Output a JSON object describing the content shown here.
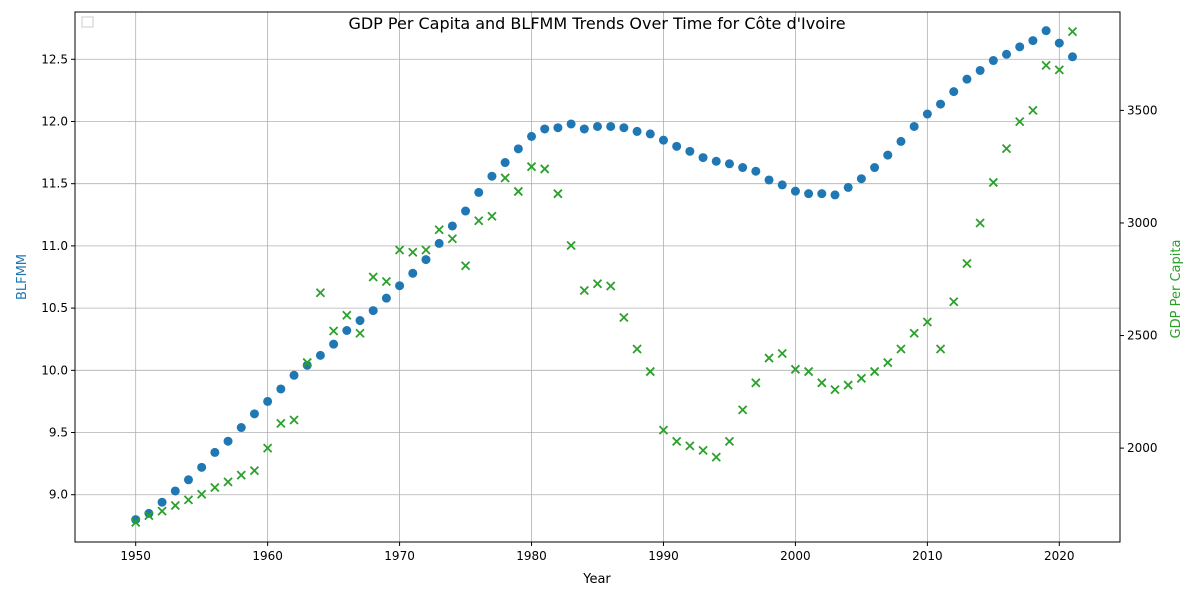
{
  "chart_data": {
    "type": "scatter",
    "title": "GDP Per Capita and BLFMM Trends Over Time for Côte d'Ivoire",
    "xlabel": "Year",
    "ylabel_left": "BLFMM",
    "ylabel_right": "GDP Per Capita",
    "xlim": [
      1945.4,
      2024.6
    ],
    "ylim_left": [
      8.62,
      12.88
    ],
    "ylim_right": [
      1583,
      3937
    ],
    "x_ticks": [
      1950,
      1960,
      1970,
      1980,
      1990,
      2000,
      2010,
      2020
    ],
    "y_left_ticks": [
      9.0,
      9.5,
      10.0,
      10.5,
      11.0,
      11.5,
      12.0,
      12.5
    ],
    "y_left_tick_labels": [
      "9.0",
      "9.5",
      "10.0",
      "10.5",
      "11.0",
      "11.5",
      "12.0",
      "12.5"
    ],
    "y_right_ticks": [
      2000,
      2500,
      3000,
      3500
    ],
    "grid": true,
    "legend_position": "upper-left",
    "colors": {
      "blfmm": "#1f77b4",
      "gdp": "#2ca02c",
      "grid": "#b0b0b0",
      "axis": "#000000"
    },
    "x": [
      1950,
      1951,
      1952,
      1953,
      1954,
      1955,
      1956,
      1957,
      1958,
      1959,
      1960,
      1961,
      1962,
      1963,
      1964,
      1965,
      1966,
      1967,
      1968,
      1969,
      1970,
      1971,
      1972,
      1973,
      1974,
      1975,
      1976,
      1977,
      1978,
      1979,
      1980,
      1981,
      1982,
      1983,
      1984,
      1985,
      1986,
      1987,
      1988,
      1989,
      1990,
      1991,
      1992,
      1993,
      1994,
      1995,
      1996,
      1997,
      1998,
      1999,
      2000,
      2001,
      2002,
      2003,
      2004,
      2005,
      2006,
      2007,
      2008,
      2009,
      2010,
      2011,
      2012,
      2013,
      2014,
      2015,
      2016,
      2017,
      2018,
      2019,
      2020,
      2021
    ],
    "series": [
      {
        "axis": "left",
        "marker": "circle",
        "values": [
          8.8,
          8.85,
          8.94,
          9.03,
          9.12,
          9.22,
          9.34,
          9.43,
          9.54,
          9.65,
          9.75,
          9.85,
          9.96,
          10.04,
          10.12,
          10.21,
          10.32,
          10.4,
          10.48,
          10.58,
          10.68,
          10.78,
          10.89,
          11.02,
          11.16,
          11.28,
          11.43,
          11.56,
          11.67,
          11.78,
          11.88,
          11.94,
          11.95,
          11.98,
          11.94,
          11.96,
          11.96,
          11.95,
          11.92,
          11.9,
          11.85,
          11.8,
          11.76,
          11.71,
          11.68,
          11.66,
          11.63,
          11.6,
          11.53,
          11.49,
          11.44,
          11.42,
          11.42,
          11.41,
          11.47,
          11.54,
          11.63,
          11.73,
          11.84,
          11.96,
          12.06,
          12.14,
          12.24,
          12.34,
          12.41,
          12.49,
          12.54,
          12.6,
          12.65,
          12.73,
          12.63,
          12.52
        ]
      },
      {
        "axis": "right",
        "marker": "x",
        "values": [
          1670,
          1700,
          1720,
          1745,
          1770,
          1795,
          1825,
          1850,
          1880,
          1900,
          2000,
          2110,
          2125,
          2380,
          2690,
          2520,
          2590,
          2510,
          2760,
          2740,
          2880,
          2870,
          2880,
          2970,
          2930,
          2810,
          3010,
          3030,
          3200,
          3140,
          3250,
          3240,
          3130,
          2900,
          2700,
          2730,
          2720,
          2580,
          2440,
          2340,
          2080,
          2030,
          2010,
          1990,
          1960,
          2030,
          2170,
          2290,
          2400,
          2420,
          2350,
          2340,
          2290,
          2260,
          2280,
          2310,
          2340,
          2380,
          2440,
          2510,
          2560,
          2440,
          2650,
          2820,
          3000,
          3180,
          3330,
          3450,
          3500,
          3700,
          3680,
          3850
        ]
      }
    ]
  }
}
